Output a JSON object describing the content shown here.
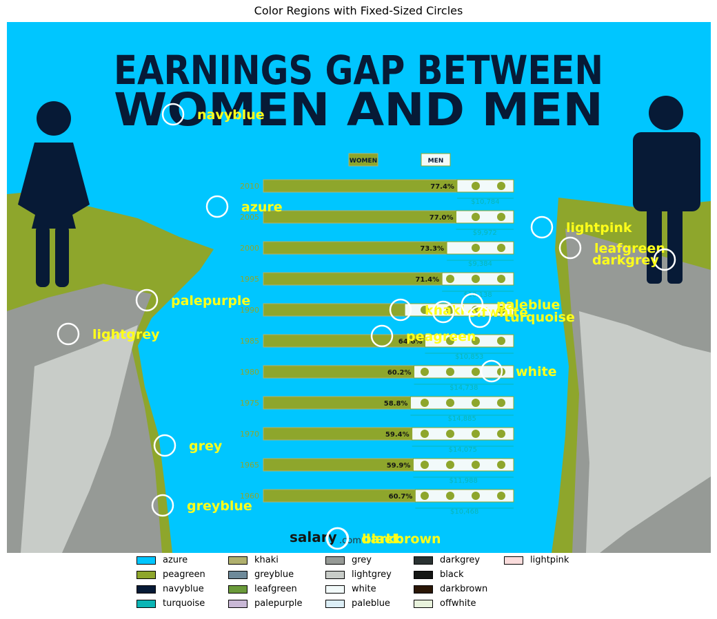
{
  "chart_data": {
    "type": "image-annotation",
    "title": "Color Regions with Fixed-Sized Circles",
    "poster": {
      "headline_1": "EARNINGS GAP BETWEEN",
      "headline_2": "WOMEN AND MEN",
      "legend_women": "WOMEN",
      "legend_men": "MEN",
      "brand": "salary",
      "brand_suffix": ".com",
      "rows": [
        {
          "year": "2010",
          "pct": "77.4%",
          "gap": "$10,784"
        },
        {
          "year": "2005",
          "pct": "77.0%",
          "gap": "$9,972"
        },
        {
          "year": "2000",
          "pct": "73.3%",
          "gap": "$9,384"
        },
        {
          "year": "1995",
          "pct": "71.4%",
          "gap": "$10,138"
        },
        {
          "year": "1990",
          "pct": "",
          "gap": ""
        },
        {
          "year": "1985",
          "pct": "64.6%",
          "gap": "$10,853"
        },
        {
          "year": "1980",
          "pct": "60.2%",
          "gap": "$14,738"
        },
        {
          "year": "1975",
          "pct": "58.8%",
          "gap": "$14,885"
        },
        {
          "year": "1970",
          "pct": "59.4%",
          "gap": "$14,075"
        },
        {
          "year": "1965",
          "pct": "59.9%",
          "gap": "$11,988"
        },
        {
          "year": "1960",
          "pct": "60.7%",
          "gap": "$10,468"
        }
      ]
    },
    "annotations": [
      {
        "label": "navyblue"
      },
      {
        "label": "azure"
      },
      {
        "label": "lightpink"
      },
      {
        "label": "leafgreen"
      },
      {
        "label": "darkgrey"
      },
      {
        "label": "palepurple"
      },
      {
        "label": "khaki"
      },
      {
        "label": "offwhite"
      },
      {
        "label": "paleblue"
      },
      {
        "label": "turquoise"
      },
      {
        "label": "lightgrey"
      },
      {
        "label": "peagreen"
      },
      {
        "label": "white"
      },
      {
        "label": "grey"
      },
      {
        "label": "greyblue"
      },
      {
        "label": "black"
      },
      {
        "label": "darkbrown"
      }
    ],
    "legend": [
      {
        "name": "azure",
        "color": "#00c6ff"
      },
      {
        "name": "peagreen",
        "color": "#8ea62c"
      },
      {
        "name": "navyblue",
        "color": "#071a36"
      },
      {
        "name": "turquoise",
        "color": "#0bb5b5"
      },
      {
        "name": "khaki",
        "color": "#b0b06e"
      },
      {
        "name": "greyblue",
        "color": "#6e8a9a"
      },
      {
        "name": "leafgreen",
        "color": "#6a9a3a"
      },
      {
        "name": "palepurple",
        "color": "#c9b8d6"
      },
      {
        "name": "grey",
        "color": "#969a96"
      },
      {
        "name": "lightgrey",
        "color": "#c8ccc8"
      },
      {
        "name": "white",
        "color": "#f2fafa"
      },
      {
        "name": "paleblue",
        "color": "#dceef6"
      },
      {
        "name": "darkgrey",
        "color": "#2a3232"
      },
      {
        "name": "black",
        "color": "#141614"
      },
      {
        "name": "darkbrown",
        "color": "#2a1606"
      },
      {
        "name": "offwhite",
        "color": "#e8f2dc"
      },
      {
        "name": "lightpink",
        "color": "#fadcdc"
      }
    ]
  }
}
